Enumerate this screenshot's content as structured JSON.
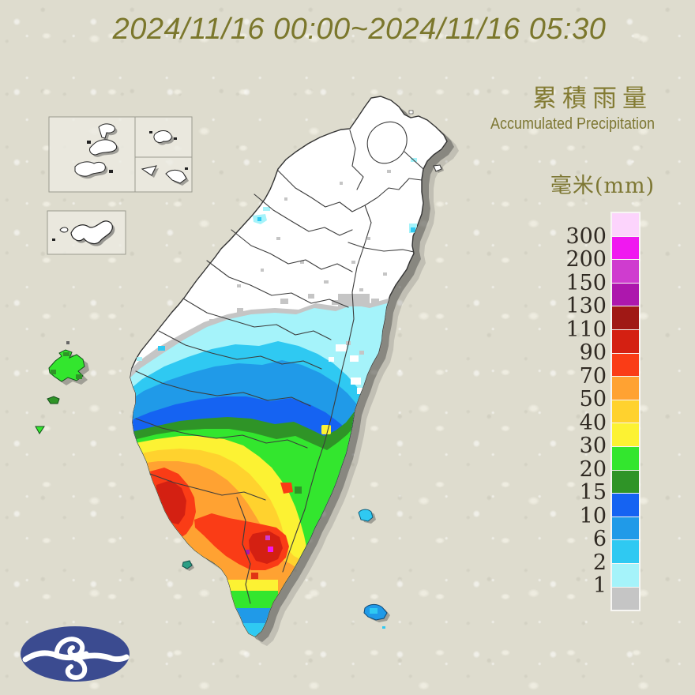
{
  "title": {
    "text": "2024/11/16 00:00~2024/11/16 05:30",
    "color": "#7b772c"
  },
  "legend": {
    "title_zh": "累積雨量",
    "title_en": "Accumulated Precipitation",
    "unit_label": "毫米(mm)",
    "thresholds": [
      "300",
      "200",
      "150",
      "130",
      "110",
      "90",
      "70",
      "50",
      "40",
      "30",
      "20",
      "15",
      "10",
      "6",
      "2",
      "1"
    ],
    "colors_top_to_bottom": [
      "#fcd4fc",
      "#f018f0",
      "#cf3ccf",
      "#ad17ad",
      "#a01815",
      "#d42012",
      "#fa3c16",
      "#ffa232",
      "#ffd22e",
      "#fcf233",
      "#33e62e",
      "#2f9427",
      "#1563f2",
      "#209ae8",
      "#2fc9f2",
      "#a5f3fa",
      "#c5c5c5"
    ],
    "label_color": "#2f2922",
    "header_color": "#837b33"
  },
  "map": {
    "no_data_color": "#ffffff",
    "islands": [
      "taiwan-main-island",
      "matsu-inset-islands",
      "kinmen-inset-island",
      "penghu-islands",
      "xiaoliuqiu-island",
      "green-island",
      "orchid-island"
    ]
  },
  "logo": {
    "name": "central-weather-administration-logo",
    "bg_color": "#3b4b90",
    "glyph_color": "#ffffff"
  }
}
